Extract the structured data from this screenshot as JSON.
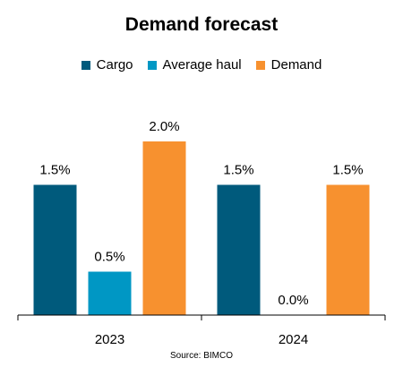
{
  "chart_data": {
    "type": "bar",
    "title": "Demand forecast",
    "categories": [
      "2023",
      "2024"
    ],
    "series": [
      {
        "name": "Cargo",
        "values": [
          1.5,
          1.5
        ],
        "labels": [
          "1.5%",
          "1.5%"
        ],
        "color": "#005A7C"
      },
      {
        "name": "Average haul",
        "values": [
          0.5,
          0.0
        ],
        "labels": [
          "0.5%",
          "0.0%"
        ],
        "color": "#0097C4"
      },
      {
        "name": "Demand",
        "values": [
          2.0,
          1.5
        ],
        "labels": [
          "2.0%",
          "1.5%"
        ],
        "color": "#F7912F"
      }
    ],
    "xlabel": "",
    "ylabel": "",
    "ylim": [
      0,
      2.0
    ],
    "grid": false,
    "legend_position": "top",
    "source": "Source: BIMCO"
  }
}
